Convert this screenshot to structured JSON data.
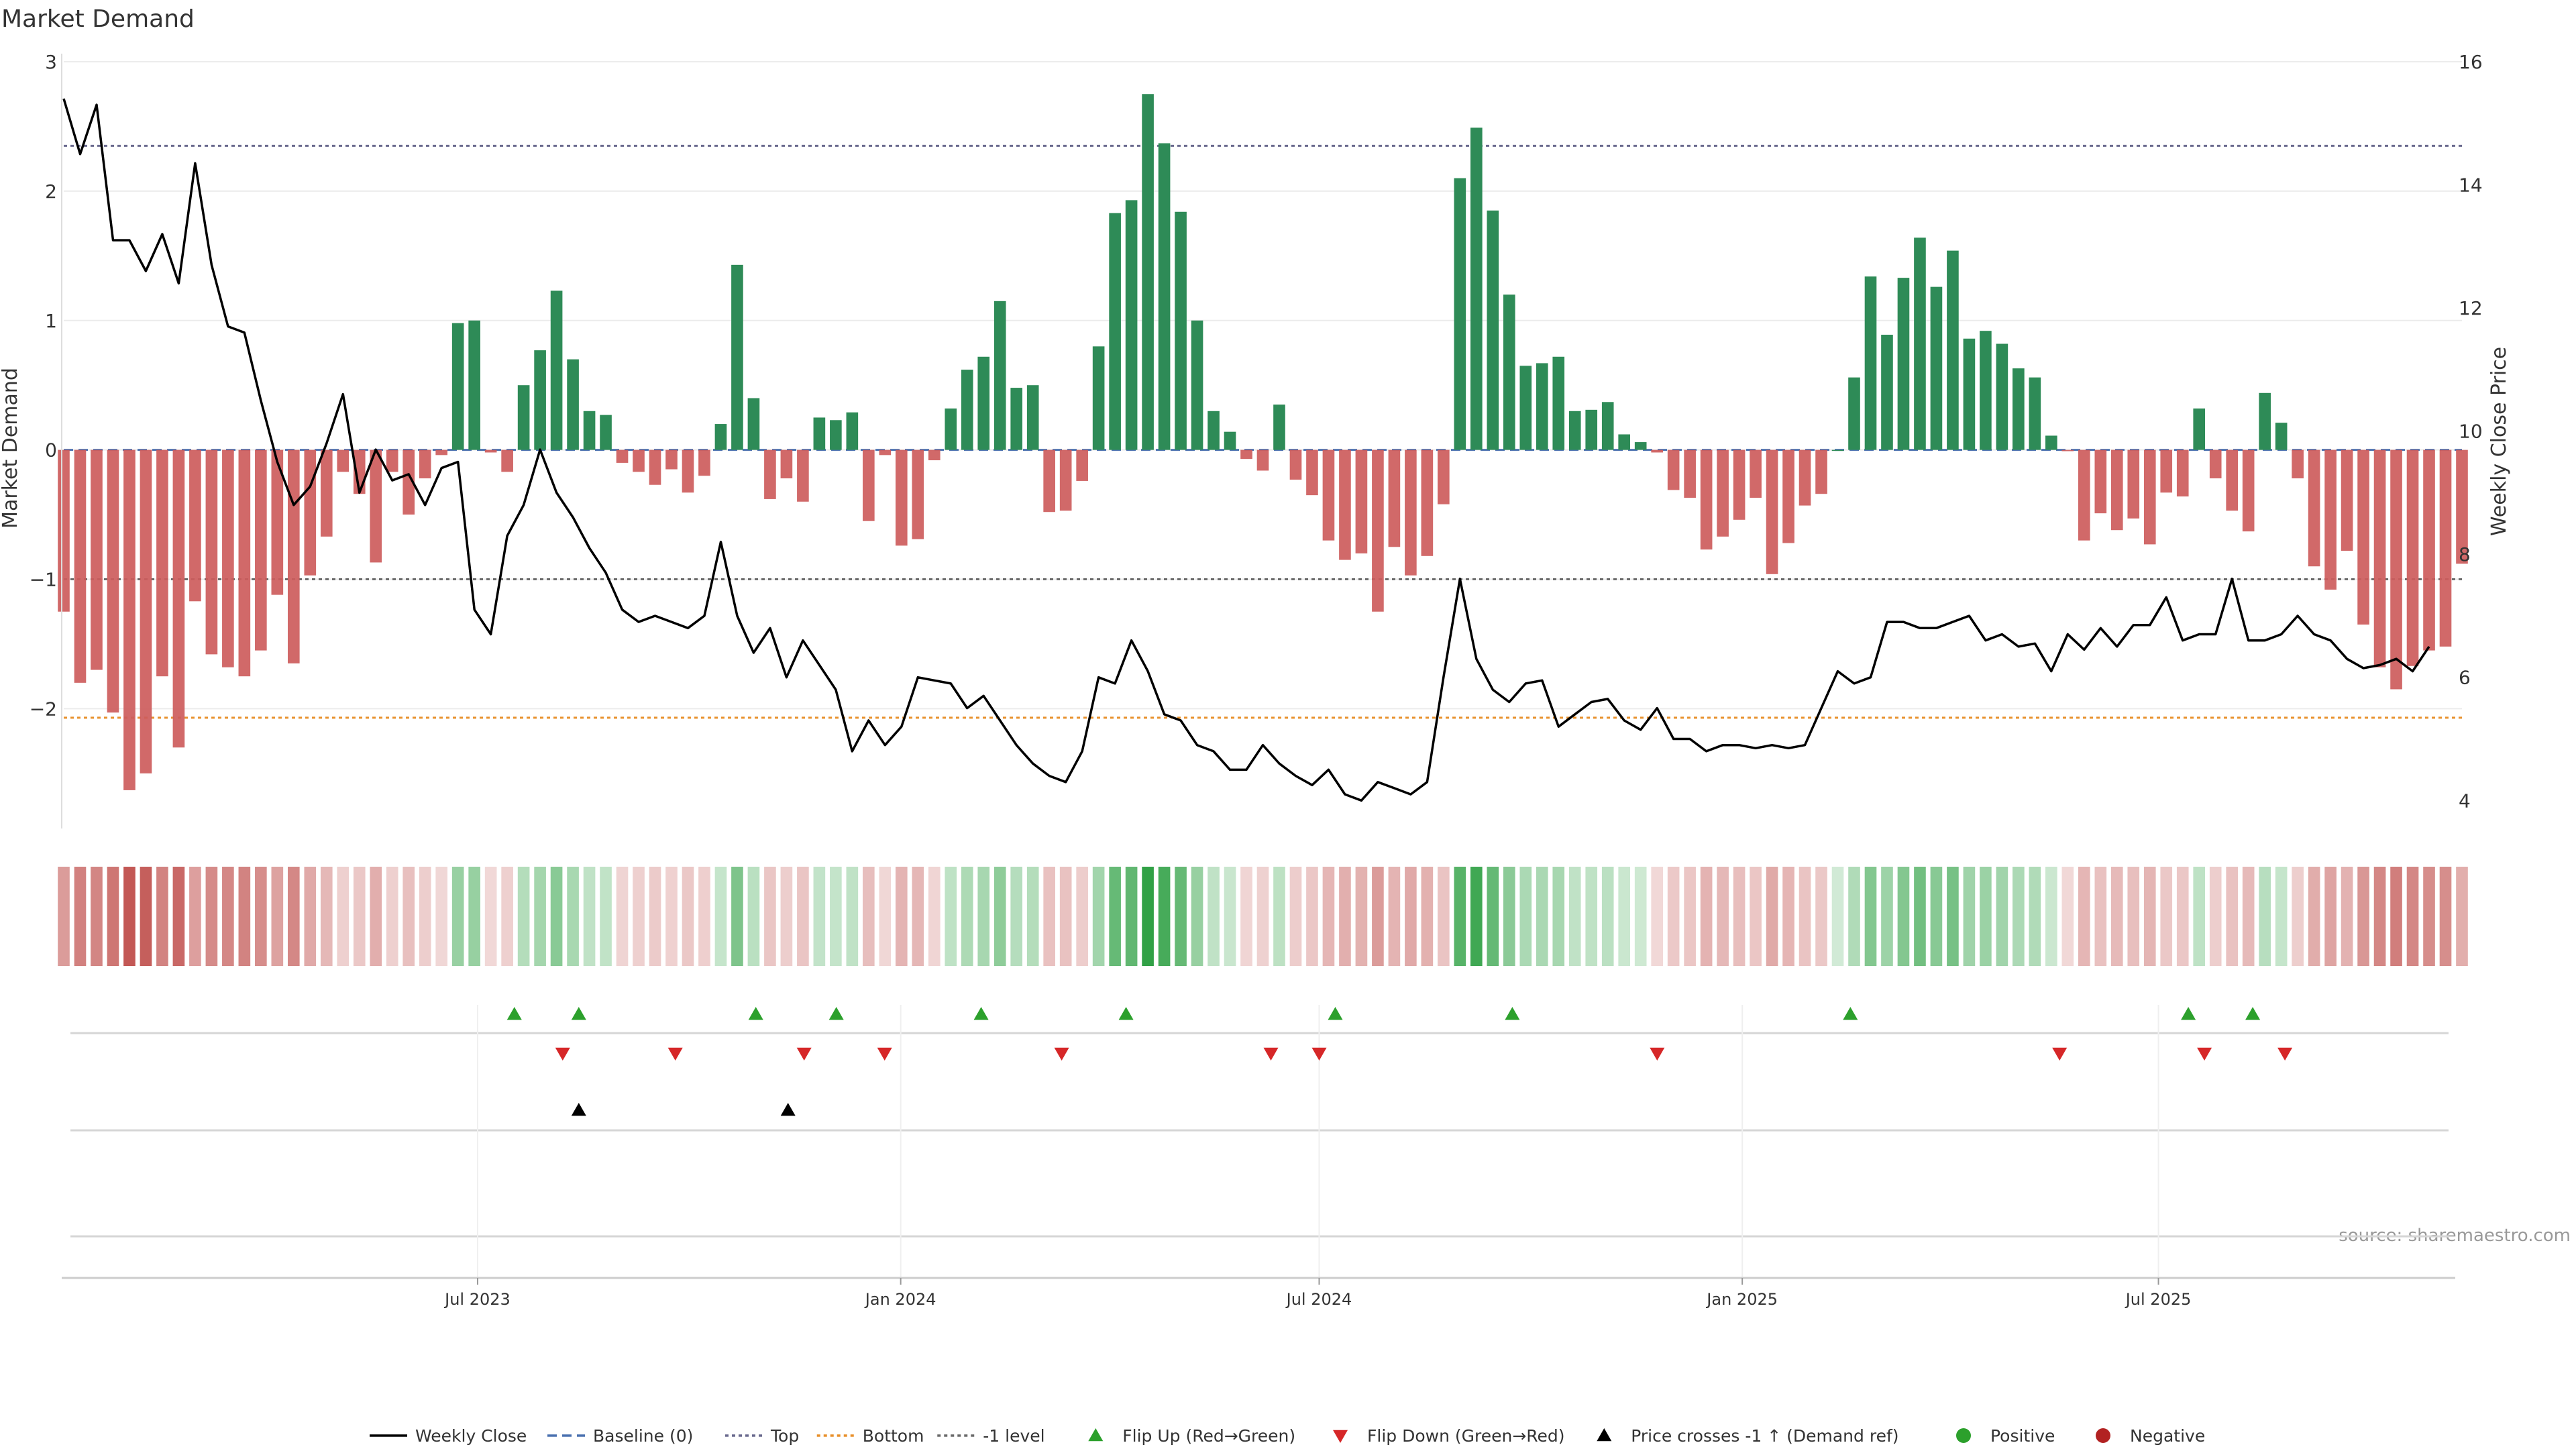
{
  "chart_data": {
    "type": "bar",
    "title": "Market Demand",
    "ylabel": "Market Demand",
    "y2label": "Weekly Close Price",
    "source": "source: sharemaestro.com",
    "ylim": [
      -2.9,
      3.0
    ],
    "y2lim": [
      3.6,
      16.0
    ],
    "yticks": [
      3,
      2,
      1,
      0,
      -1,
      -2
    ],
    "ytick_labels": [
      "3",
      "2",
      "1",
      "0",
      "−1",
      "−2"
    ],
    "y2ticks": [
      16,
      14,
      12,
      10,
      8,
      6,
      4
    ],
    "y2tick_labels": [
      "16",
      "14",
      "12",
      "10",
      "8",
      "6",
      "4"
    ],
    "x_start": "2023-01-02",
    "x_end": "2025-11-10",
    "xticks": [
      "2023-07-01",
      "2024-01-01",
      "2024-07-01",
      "2025-01-01",
      "2025-07-01"
    ],
    "xtick_labels": [
      "Jul 2023",
      "Jan 2024",
      "Jul 2024",
      "Jan 2025",
      "Jul 2025"
    ],
    "levels": {
      "top": 2.35,
      "bottom": -2.07,
      "minus_one": -1.0
    },
    "demand": [
      -1.25,
      -1.8,
      -1.7,
      -2.03,
      -2.63,
      -2.5,
      -1.75,
      -2.3,
      -1.17,
      -1.58,
      -1.68,
      -1.75,
      -1.55,
      -1.12,
      -1.65,
      -0.97,
      -0.67,
      -0.17,
      -0.34,
      -0.87,
      -0.17,
      -0.5,
      -0.22,
      -0.04,
      0.98,
      1.0,
      -0.02,
      -0.17,
      0.5,
      0.77,
      1.23,
      0.7,
      0.3,
      0.27,
      -0.1,
      -0.17,
      -0.27,
      -0.15,
      -0.33,
      -0.2,
      0.2,
      1.43,
      0.4,
      -0.38,
      -0.22,
      -0.4,
      0.25,
      0.23,
      0.29,
      -0.55,
      -0.04,
      -0.74,
      -0.69,
      -0.08,
      0.32,
      0.62,
      0.72,
      1.15,
      0.48,
      0.5,
      -0.48,
      -0.47,
      -0.24,
      0.8,
      1.83,
      1.93,
      2.75,
      2.37,
      1.84,
      1.0,
      0.3,
      0.14,
      -0.07,
      -0.16,
      0.35,
      -0.23,
      -0.35,
      -0.7,
      -0.85,
      -0.8,
      -1.25,
      -0.75,
      -0.97,
      -0.82,
      -0.42,
      2.1,
      2.49,
      1.85,
      1.2,
      0.65,
      0.67,
      0.72,
      0.3,
      0.31,
      0.37,
      0.12,
      0.06,
      -0.02,
      -0.31,
      -0.37,
      -0.77,
      -0.67,
      -0.54,
      -0.37,
      -0.96,
      -0.72,
      -0.43,
      -0.34,
      0.0,
      0.56,
      1.34,
      0.89,
      1.33,
      1.64,
      1.26,
      1.54,
      0.86,
      0.92,
      0.82,
      0.63,
      0.56,
      0.11,
      -0.01,
      -0.7,
      -0.49,
      -0.62,
      -0.53,
      -0.73,
      -0.33,
      -0.36,
      0.32,
      -0.22,
      -0.47,
      -0.63,
      0.44,
      0.21,
      -0.22,
      -0.9,
      -1.08,
      -0.78,
      -1.35,
      -1.68,
      -1.85,
      -1.67,
      -1.55,
      -1.52,
      -0.88
    ],
    "weekly_close": [
      15.4,
      14.5,
      15.3,
      13.1,
      13.1,
      12.6,
      13.2,
      12.4,
      14.35,
      12.7,
      11.7,
      11.6,
      10.5,
      9.5,
      8.8,
      9.1,
      9.8,
      10.6,
      9.0,
      9.7,
      9.2,
      9.3,
      8.8,
      9.4,
      9.5,
      7.1,
      6.7,
      8.3,
      8.8,
      9.7,
      9.0,
      8.6,
      8.1,
      7.7,
      7.1,
      6.9,
      7.0,
      6.9,
      6.8,
      7.0,
      8.2,
      7.0,
      6.4,
      6.8,
      6.0,
      6.6,
      6.2,
      5.8,
      4.8,
      5.3,
      4.9,
      5.2,
      6.0,
      5.95,
      5.9,
      5.5,
      5.7,
      5.3,
      4.9,
      4.6,
      4.4,
      4.3,
      4.8,
      6.0,
      5.9,
      6.6,
      6.1,
      5.4,
      5.3,
      4.9,
      4.8,
      4.5,
      4.5,
      4.9,
      4.6,
      4.4,
      4.25,
      4.5,
      4.1,
      4.0,
      4.3,
      4.2,
      4.1,
      4.3,
      6.0,
      7.6,
      6.3,
      5.8,
      5.6,
      5.9,
      5.95,
      5.2,
      5.4,
      5.6,
      5.65,
      5.3,
      5.15,
      5.5,
      5.0,
      5.0,
      4.8,
      4.9,
      4.9,
      4.85,
      4.9,
      4.85,
      4.9,
      5.5,
      6.1,
      5.9,
      6.0,
      6.9,
      6.9,
      6.8,
      6.8,
      6.9,
      7.0,
      6.6,
      6.7,
      6.5,
      6.55,
      6.1,
      6.7,
      6.45,
      6.8,
      6.5,
      6.85,
      6.85,
      7.3,
      6.6,
      6.7,
      6.7,
      7.6,
      6.6,
      6.6,
      6.7,
      7.0,
      6.7,
      6.6,
      6.3,
      6.15,
      6.2,
      6.3,
      6.1,
      6.5
    ],
    "flip_up": [
      "2023-07-17",
      "2023-08-14",
      "2023-10-30",
      "2023-12-04",
      "2024-02-05",
      "2024-04-08",
      "2024-07-08",
      "2024-09-23",
      "2025-02-17",
      "2025-07-14",
      "2025-08-11"
    ],
    "flip_down": [
      "2023-08-07",
      "2023-09-25",
      "2023-11-20",
      "2023-12-25",
      "2024-03-11",
      "2024-06-10",
      "2024-07-01",
      "2024-11-25",
      "2025-05-19",
      "2025-07-21",
      "2025-08-25"
    ],
    "price_cross": [
      "2023-08-14",
      "2023-11-13"
    ],
    "legend": {
      "placement": "bottom-center",
      "items": [
        {
          "label": "Weekly Close",
          "kind": "line",
          "color": "#000000"
        },
        {
          "label": "Baseline (0)",
          "kind": "dash",
          "color": "#4c72b0"
        },
        {
          "label": "Top",
          "kind": "dot",
          "color": "#6b6b8f"
        },
        {
          "label": "Bottom",
          "kind": "dot",
          "color": "#e8912d"
        },
        {
          "label": "-1 level",
          "kind": "dot",
          "color": "#6b6b6b"
        },
        {
          "label": "Flip Up (Red→Green)",
          "kind": "tri-up",
          "color": "#2ca02c"
        },
        {
          "label": "Flip Down (Green→Red)",
          "kind": "tri-down",
          "color": "#d62728"
        },
        {
          "label": "Price crosses -1 ↑ (Demand ref)",
          "kind": "tri-up",
          "color": "#000000"
        },
        {
          "label": "Positive",
          "kind": "circle",
          "color": "#2ca02c"
        },
        {
          "label": "Negative",
          "kind": "circle",
          "color": "#b22222"
        }
      ]
    },
    "colors": {
      "positive": "#2e8b57",
      "negative": "#cd5c5c",
      "heat_positive": "#2ea043",
      "heat_negative": "#c0504d",
      "top_line": "#6b6b8f",
      "bottom_line": "#e8912d",
      "minus_one_line": "#6b6b6b",
      "baseline": "#4c72b0",
      "price": "#000000",
      "flip_up": "#2ca02c",
      "flip_down": "#d62728",
      "price_cross": "#000000"
    }
  }
}
